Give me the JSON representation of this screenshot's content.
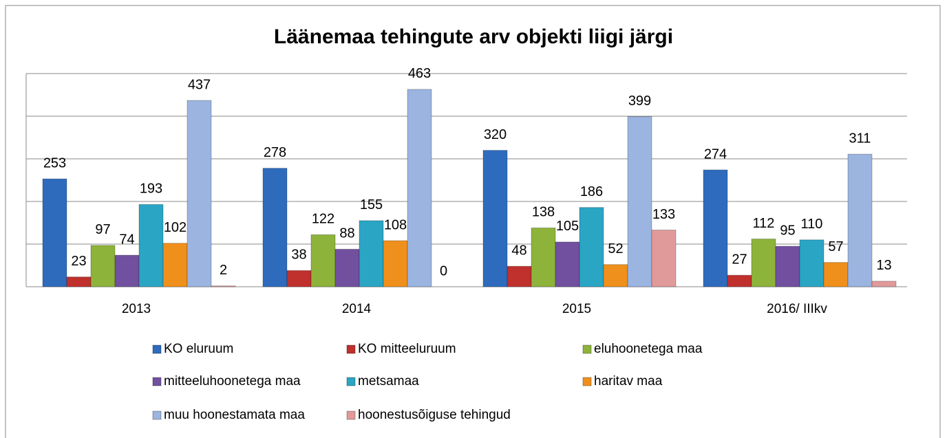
{
  "chart_data": {
    "type": "bar",
    "title": "Läänemaa tehingute arv objekti liigi järgi",
    "categories": [
      "2013",
      "2014",
      "2015",
      "2016/ IIIkv"
    ],
    "series": [
      {
        "name": "KO eluruum",
        "color": "#2e6bbd",
        "values": [
          253,
          278,
          320,
          274
        ]
      },
      {
        "name": "KO mitteeluruum",
        "color": "#c0302c",
        "values": [
          23,
          38,
          48,
          27
        ]
      },
      {
        "name": "eluhoonetega maa",
        "color": "#8db33a",
        "values": [
          97,
          122,
          138,
          112
        ]
      },
      {
        "name": "mitteeluhoonetega maa",
        "color": "#7150a0",
        "values": [
          74,
          88,
          105,
          95
        ]
      },
      {
        "name": "metsamaa",
        "color": "#2aa5c4",
        "values": [
          193,
          155,
          186,
          110
        ]
      },
      {
        "name": "haritav maa",
        "color": "#f0901c",
        "values": [
          102,
          108,
          52,
          57
        ]
      },
      {
        "name": "muu hoonestamata maa",
        "color": "#9bb4e0",
        "values": [
          437,
          463,
          399,
          311
        ]
      },
      {
        "name": "hoonestusõiguse tehingud",
        "color": "#e19a9a",
        "values": [
          2,
          0,
          133,
          13
        ]
      }
    ],
    "ylim": [
      0,
      500
    ],
    "yticks": [
      0,
      100,
      200,
      300,
      400,
      500
    ],
    "grid": true,
    "legend": "bottom"
  }
}
